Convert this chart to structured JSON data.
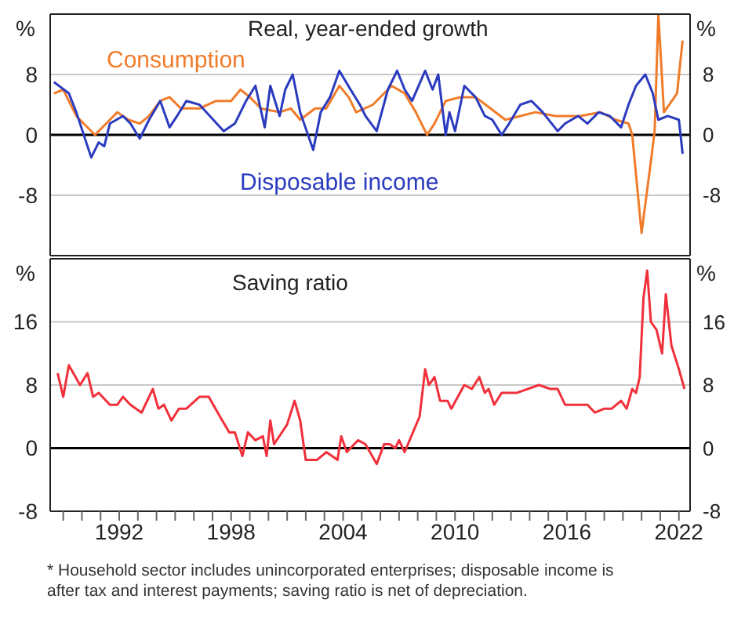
{
  "chart_data": [
    {
      "type": "line",
      "title": "Real, year-ended growth",
      "ylabel": "%",
      "y2label": "%",
      "xlim": [
        1988.3,
        2022.6
      ],
      "ylim": [
        -16,
        16
      ],
      "yticks": [
        -8,
        0,
        8
      ],
      "y2lim": [
        -16,
        16
      ],
      "y2ticks": [
        -8,
        0,
        8
      ],
      "grid": "y",
      "tick_labels": "y",
      "ref_lines": [
        {
          "axis": "y",
          "value": 0,
          "color": "#000000"
        }
      ],
      "series": [
        {
          "name": "Consumption",
          "color": "#f07c2a",
          "x": [
            1988.5,
            1989,
            1989.7,
            1990.7,
            1991.5,
            1991.9,
            1992.5,
            1993.1,
            1993.6,
            1994.2,
            1994.7,
            1995.3,
            1996.3,
            1997.2,
            1998,
            1998.5,
            1999,
            1999.6,
            2000.6,
            2001.2,
            2001.7,
            2002.5,
            2003.1,
            2003.8,
            2004.3,
            2004.7,
            2005.6,
            2006.6,
            2007.3,
            2007.9,
            2008.5,
            2008.9,
            2009.5,
            2010.3,
            2011.1,
            2011.9,
            2012.7,
            2013.5,
            2014.3,
            2015.4,
            2016.7,
            2017.8,
            2018.6,
            2019.3,
            2019.5,
            2020,
            2020.5,
            2020.7,
            2020.9,
            2021.2,
            2021.9,
            2022.2
          ],
          "values": [
            5.5,
            6,
            2.5,
            0,
            2,
            3,
            2,
            1.5,
            2.5,
            4.5,
            5,
            3.5,
            3.5,
            4.5,
            4.5,
            6,
            5,
            3.5,
            3,
            3.5,
            2,
            3.5,
            3.5,
            6.5,
            5,
            3,
            4,
            6.5,
            5.5,
            3,
            0,
            1.5,
            4.5,
            5,
            5,
            3.5,
            2,
            2.5,
            3,
            2.5,
            2.5,
            3,
            2,
            1.5,
            0,
            -13,
            -3.5,
            0.5,
            16,
            3,
            5.5,
            12.5
          ]
        },
        {
          "name": "Disposable income",
          "color": "#2b3bbf",
          "x": [
            1988.5,
            1989.3,
            1989.7,
            1990.5,
            1990.9,
            1991.2,
            1991.5,
            1992.2,
            1992.6,
            1993.1,
            1993.6,
            1994.2,
            1994.7,
            1995.1,
            1995.6,
            1996.3,
            1997.6,
            1998.2,
            1998.8,
            1999.3,
            1999.8,
            2000.1,
            2000.6,
            2000.9,
            2001.3,
            2001.7,
            2002.4,
            2002.8,
            2003.3,
            2003.8,
            2004.4,
            2004.9,
            2005.2,
            2005.8,
            2006.4,
            2006.9,
            2007.3,
            2007.7,
            2008.4,
            2008.8,
            2009.1,
            2009.5,
            2009.7,
            2010,
            2010.5,
            2011.1,
            2011.6,
            2012,
            2012.5,
            2012.9,
            2013.5,
            2014.1,
            2014.7,
            2015.5,
            2015.9,
            2016.6,
            2017.1,
            2017.7,
            2018.3,
            2018.9,
            2019.3,
            2019.7,
            2020.2,
            2020.6,
            2020.9,
            2021.4,
            2022,
            2022.2
          ],
          "values": [
            7,
            5.5,
            3,
            -3,
            -1,
            -1.5,
            1.5,
            2.5,
            1.5,
            -0.5,
            2,
            4.5,
            1,
            2.5,
            4.5,
            4,
            0.5,
            1.5,
            4.5,
            6.5,
            1,
            6.5,
            2.5,
            6,
            8,
            3,
            -2,
            3,
            5,
            8.5,
            6,
            4,
            2.5,
            0.5,
            6,
            8.5,
            6,
            4.5,
            8.5,
            6,
            8,
            0,
            3,
            0.5,
            6.5,
            5,
            2.5,
            2,
            0,
            1.5,
            4,
            4.5,
            3,
            0.5,
            1.5,
            2.5,
            1.5,
            3,
            2.5,
            1,
            4,
            6.5,
            8,
            5.5,
            2,
            2.5,
            2,
            -2.5
          ]
        }
      ]
    },
    {
      "type": "line",
      "title": "Saving ratio",
      "ylabel": "%",
      "y2label": "%",
      "xlim": [
        1988.3,
        2022.6
      ],
      "xticks": [
        {
          "value": 1989,
          "label": null
        },
        {
          "value": 1990,
          "label": null
        },
        {
          "value": 1991,
          "label": null
        },
        1992,
        {
          "value": 1993,
          "label": null
        },
        {
          "value": 1994,
          "label": null
        },
        {
          "value": 1995,
          "label": null
        },
        {
          "value": 1996,
          "label": null
        },
        {
          "value": 1997,
          "label": null
        },
        1998,
        {
          "value": 1999,
          "label": null
        },
        {
          "value": 2000,
          "label": null
        },
        {
          "value": 2001,
          "label": null
        },
        {
          "value": 2002,
          "label": null
        },
        {
          "value": 2003,
          "label": null
        },
        2004,
        {
          "value": 2005,
          "label": null
        },
        {
          "value": 2006,
          "label": null
        },
        {
          "value": 2007,
          "label": null
        },
        {
          "value": 2008,
          "label": null
        },
        {
          "value": 2009,
          "label": null
        },
        2010,
        {
          "value": 2011,
          "label": null
        },
        {
          "value": 2012,
          "label": null
        },
        {
          "value": 2013,
          "label": null
        },
        {
          "value": 2014,
          "label": null
        },
        {
          "value": 2015,
          "label": null
        },
        2016,
        {
          "value": 2017,
          "label": null
        },
        {
          "value": 2018,
          "label": null
        },
        {
          "value": 2019,
          "label": null
        },
        {
          "value": 2020,
          "label": null
        },
        {
          "value": 2021,
          "label": null
        },
        2022
      ],
      "ylim": [
        -8,
        24
      ],
      "yticks": [
        -8,
        0,
        8,
        16
      ],
      "y2lim": [
        -8,
        24
      ],
      "y2ticks": [
        -8,
        0,
        8,
        16
      ],
      "grid": "y",
      "ref_lines": [
        {
          "axis": "y",
          "value": 0,
          "color": "#000000"
        }
      ],
      "annotations": [
        "* Household sector includes unincorporated enterprises; disposable income is after tax and interest payments; saving ratio is net of depreciation."
      ],
      "series": [
        {
          "color": "#f0303a",
          "x": [
            1988.7,
            1989,
            1989.3,
            1989.9,
            1990.3,
            1990.6,
            1990.9,
            1991.5,
            1991.9,
            1992.2,
            1992.6,
            1993.2,
            1993.8,
            1994.1,
            1994.4,
            1994.8,
            1995.2,
            1995.6,
            1996.3,
            1996.8,
            1997.4,
            1997.9,
            1998.2,
            1998.6,
            1998.9,
            1999.3,
            1999.7,
            1999.9,
            2000.1,
            2000.3,
            2001,
            2001.4,
            2001.7,
            2002,
            2002.6,
            2003.1,
            2003.7,
            2003.9,
            2004.2,
            2004.8,
            2005.2,
            2005.8,
            2006.2,
            2006.5,
            2006.8,
            2007,
            2007.3,
            2008.1,
            2008.4,
            2008.6,
            2008.9,
            2009.2,
            2009.6,
            2009.8,
            2010.5,
            2010.9,
            2011.3,
            2011.6,
            2011.8,
            2012.1,
            2012.5,
            2013.3,
            2014.5,
            2015.1,
            2015.5,
            2015.9,
            2016.6,
            2017.1,
            2017.5,
            2018,
            2018.4,
            2018.9,
            2019.2,
            2019.5,
            2019.7,
            2019.9,
            2020.1,
            2020.3,
            2020.5,
            2020.8,
            2021.1,
            2021.3,
            2021.6,
            2022,
            2022.3
          ],
          "values": [
            9.5,
            6.5,
            10.5,
            8,
            9.5,
            6.5,
            7,
            5.5,
            5.5,
            6.5,
            5.5,
            4.5,
            7.5,
            5,
            5.5,
            3.5,
            5,
            5,
            6.5,
            6.5,
            4,
            2,
            2,
            -1,
            2,
            1,
            1.5,
            -1,
            3.5,
            0.5,
            3,
            6,
            3.5,
            -1.5,
            -1.5,
            -0.5,
            -1.5,
            1.5,
            -0.5,
            1,
            0.5,
            -2,
            0.5,
            0.5,
            0,
            1,
            -0.5,
            4,
            10,
            8,
            9,
            6,
            6,
            5,
            8,
            7.5,
            9,
            7,
            7.5,
            5.5,
            7,
            7,
            8,
            7.5,
            7.5,
            5.5,
            5.5,
            5.5,
            4.5,
            5,
            5,
            6,
            5,
            7.5,
            7,
            9,
            19,
            22.5,
            16,
            15,
            12,
            19.5,
            13,
            10,
            7.5
          ]
        }
      ]
    }
  ]
}
